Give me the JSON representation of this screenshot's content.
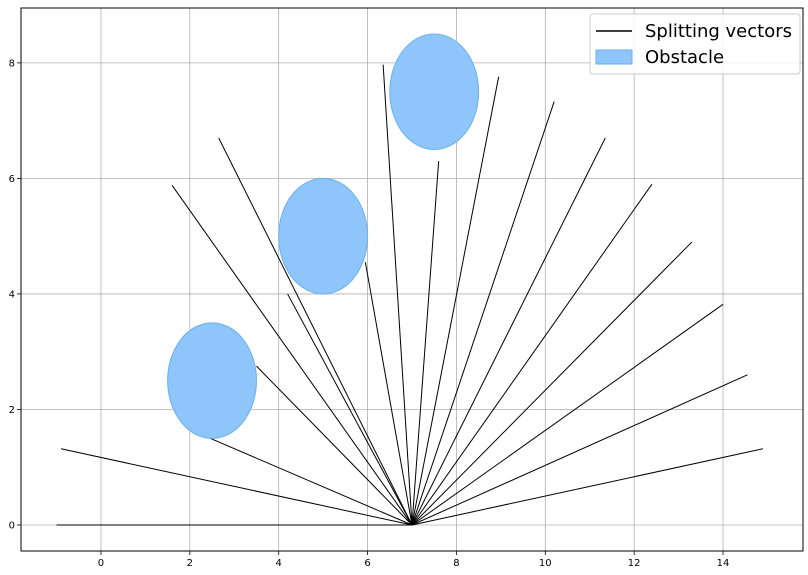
{
  "chart_data": {
    "type": "line",
    "title": "",
    "xlabel": "",
    "ylabel": "",
    "xlim": [
      -1.8,
      15.8
    ],
    "ylim": [
      -0.45,
      8.95
    ],
    "xticks": [
      0,
      2,
      4,
      6,
      8,
      10,
      12,
      14
    ],
    "yticks": [
      0,
      2,
      4,
      6,
      8
    ],
    "grid": true,
    "legend": {
      "placement": "top-right",
      "entries": [
        {
          "label": "Splitting vectors",
          "kind": "line",
          "color": "#000000"
        },
        {
          "label": "Obstacle",
          "kind": "patch",
          "color": "#8ec6fb",
          "edge": "#6ab0f0"
        }
      ]
    },
    "vector_origin": [
      7.0,
      0.0
    ],
    "vector_color": "#000000",
    "vector_endpoints": [
      [
        -0.9,
        1.32
      ],
      [
        2.4,
        1.52
      ],
      [
        3.5,
        2.75
      ],
      [
        1.6,
        5.88
      ],
      [
        4.2,
        4.0
      ],
      [
        2.65,
        6.7
      ],
      [
        5.95,
        4.55
      ],
      [
        6.35,
        7.97
      ],
      [
        7.6,
        6.3
      ],
      [
        8.95,
        7.76
      ],
      [
        10.2,
        7.33
      ],
      [
        11.35,
        6.7
      ],
      [
        12.4,
        5.9
      ],
      [
        13.3,
        4.9
      ],
      [
        14.0,
        3.82
      ],
      [
        14.55,
        2.6
      ],
      [
        14.9,
        1.32
      ],
      [
        -1.0,
        0.0
      ]
    ],
    "obstacles": [
      {
        "center": [
          2.5,
          2.5
        ],
        "radius": 1.0
      },
      {
        "center": [
          5.0,
          5.0
        ],
        "radius": 1.0
      },
      {
        "center": [
          7.5,
          7.5
        ],
        "radius": 1.0
      }
    ],
    "obstacle_color": "#8ec6fb",
    "obstacle_edge_color": "#6ab0f0"
  }
}
